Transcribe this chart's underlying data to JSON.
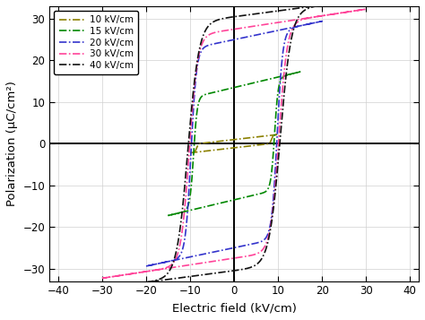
{
  "xlabel": "Electric field (kV/cm)",
  "ylabel": "Polarization (μC/cm²)",
  "xlim": [
    -42,
    42
  ],
  "ylim": [
    -33,
    33
  ],
  "xticks": [
    -40,
    -30,
    -20,
    -10,
    0,
    10,
    20,
    30,
    40
  ],
  "yticks": [
    -30,
    -20,
    -10,
    0,
    10,
    20,
    30
  ],
  "background_color": "#ffffff",
  "grid_color": "#d0d0d0",
  "loops": [
    {
      "label": "10 kV/cm",
      "color": "#8B8000",
      "E_max": 10,
      "Ec": 8.5,
      "P_sat": 1.0,
      "P_lin": 0.12,
      "k": 25
    },
    {
      "label": "15 kV/cm",
      "color": "#008800",
      "E_max": 15,
      "Ec": 9.2,
      "P_sat": 13.5,
      "P_lin": 0.25,
      "k": 18
    },
    {
      "label": "20 kV/cm",
      "color": "#3333cc",
      "E_max": 20,
      "Ec": 9.8,
      "P_sat": 25.0,
      "P_lin": 0.22,
      "k": 16
    },
    {
      "label": "30 kV/cm",
      "color": "#ff4499",
      "E_max": 30,
      "Ec": 10.2,
      "P_sat": 27.5,
      "P_lin": 0.16,
      "k": 16
    },
    {
      "label": "40 kV/cm",
      "color": "#111111",
      "E_max": 40,
      "Ec": 10.5,
      "P_sat": 30.5,
      "P_lin": 0.14,
      "k": 16
    }
  ]
}
